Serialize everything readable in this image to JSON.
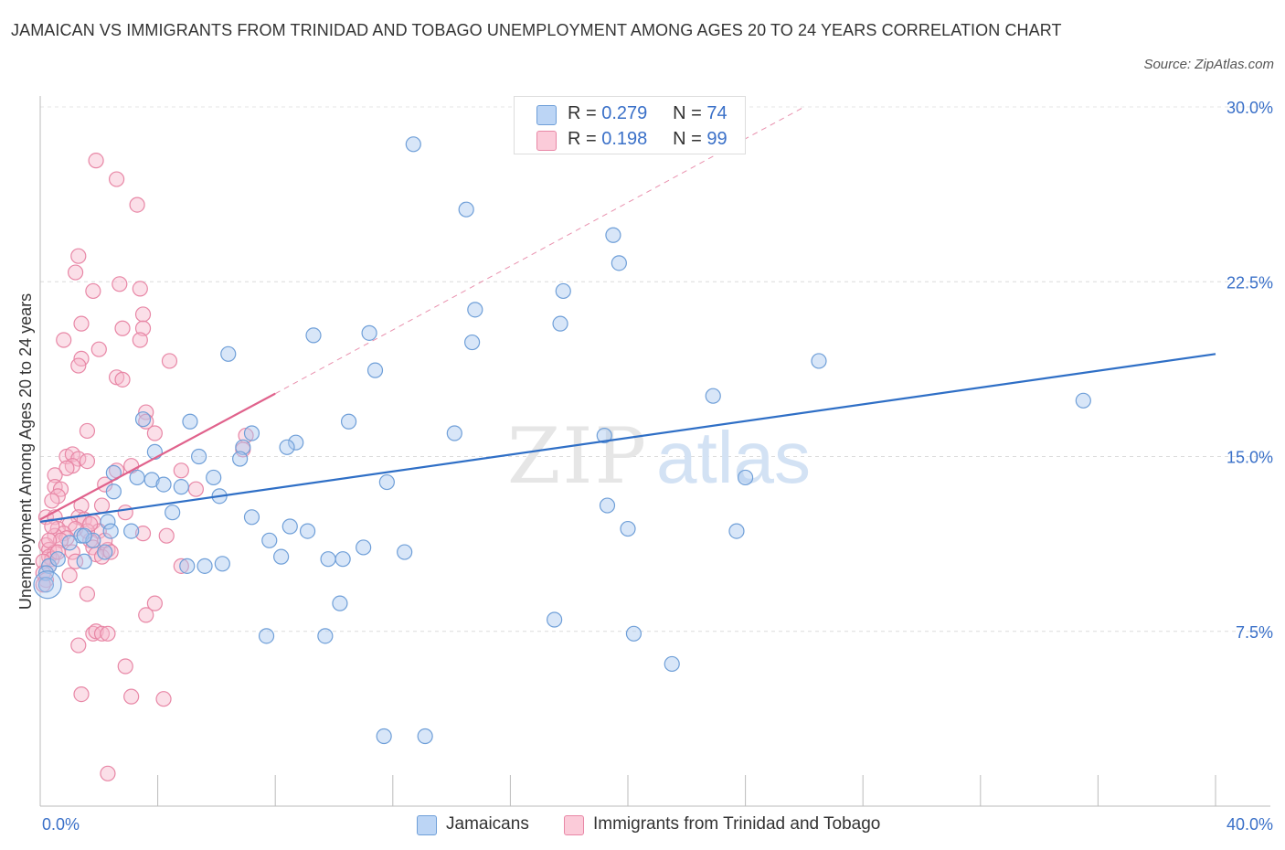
{
  "title": "JAMAICAN VS IMMIGRANTS FROM TRINIDAD AND TOBAGO UNEMPLOYMENT AMONG AGES 20 TO 24 YEARS CORRELATION CHART",
  "source": "Source: ZipAtlas.com",
  "watermark": {
    "zip": "ZIP",
    "atlas": "atlas"
  },
  "legend": {
    "r_label": "R =",
    "n_label": "N =",
    "series": [
      {
        "r": "0.279",
        "n": "74"
      },
      {
        "r": "0.198",
        "n": "99"
      }
    ]
  },
  "bottom_legend": [
    "Jamaicans",
    "Immigrants from Trinidad and Tobago"
  ],
  "colors": {
    "blue_fill": "#a8c8f0",
    "blue_stroke": "#6f9fd8",
    "blue_line": "#2f6fc6",
    "pink_fill": "#f7b9cc",
    "pink_stroke": "#e887a6",
    "pink_line": "#e0628c",
    "tick_label": "#3a70c8"
  },
  "chart_data": {
    "type": "scatter",
    "xlabel": "",
    "ylabel": "Unemployment Among Ages 20 to 24 years",
    "xlim": [
      0,
      40
    ],
    "ylim": [
      0,
      30
    ],
    "x_tick_labels": [
      "0.0%",
      "40.0%"
    ],
    "y_ticks": [
      7.5,
      15.0,
      22.5,
      30.0
    ],
    "y_tick_labels": [
      "7.5%",
      "15.0%",
      "22.5%",
      "30.0%"
    ],
    "grid": "horizontal dashed",
    "series": [
      {
        "name": "Jamaicans",
        "r": 0.279,
        "n": 74,
        "trend": {
          "x": [
            0,
            40
          ],
          "y": [
            12.2,
            19.4
          ],
          "style": "solid"
        },
        "points": [
          [
            12.7,
            28.4
          ],
          [
            14.5,
            25.6
          ],
          [
            19.5,
            24.5
          ],
          [
            19.7,
            23.3
          ],
          [
            17.8,
            22.1
          ],
          [
            14.8,
            21.3
          ],
          [
            17.7,
            20.7
          ],
          [
            9.3,
            20.2
          ],
          [
            11.2,
            20.3
          ],
          [
            14.7,
            19.9
          ],
          [
            6.4,
            19.4
          ],
          [
            26.5,
            19.1
          ],
          [
            11.4,
            18.7
          ],
          [
            22.9,
            17.6
          ],
          [
            35.5,
            17.4
          ],
          [
            3.5,
            16.6
          ],
          [
            5.1,
            16.5
          ],
          [
            10.5,
            16.5
          ],
          [
            7.2,
            16.0
          ],
          [
            14.1,
            16.0
          ],
          [
            19.2,
            15.9
          ],
          [
            8.7,
            15.6
          ],
          [
            8.4,
            15.4
          ],
          [
            6.9,
            15.4
          ],
          [
            3.9,
            15.2
          ],
          [
            5.4,
            15.0
          ],
          [
            6.8,
            14.9
          ],
          [
            2.5,
            14.3
          ],
          [
            3.3,
            14.1
          ],
          [
            5.9,
            14.1
          ],
          [
            24.0,
            14.1
          ],
          [
            3.8,
            14.0
          ],
          [
            4.2,
            13.8
          ],
          [
            4.8,
            13.7
          ],
          [
            11.8,
            13.9
          ],
          [
            2.5,
            13.5
          ],
          [
            6.1,
            13.3
          ],
          [
            19.3,
            12.9
          ],
          [
            4.5,
            12.6
          ],
          [
            7.2,
            12.4
          ],
          [
            2.3,
            12.2
          ],
          [
            8.5,
            12.0
          ],
          [
            1.4,
            11.6
          ],
          [
            1.8,
            11.4
          ],
          [
            2.4,
            11.8
          ],
          [
            3.1,
            11.8
          ],
          [
            9.1,
            11.8
          ],
          [
            20.0,
            11.9
          ],
          [
            23.7,
            11.8
          ],
          [
            7.8,
            11.4
          ],
          [
            1.0,
            11.3
          ],
          [
            2.2,
            10.9
          ],
          [
            11.0,
            11.1
          ],
          [
            12.4,
            10.9
          ],
          [
            8.2,
            10.7
          ],
          [
            9.8,
            10.6
          ],
          [
            10.3,
            10.6
          ],
          [
            1.5,
            10.5
          ],
          [
            5.6,
            10.3
          ],
          [
            6.2,
            10.4
          ],
          [
            0.3,
            10.3
          ],
          [
            5.0,
            10.3
          ],
          [
            0.2,
            10.0
          ],
          [
            0.2,
            9.5
          ],
          [
            10.2,
            8.7
          ],
          [
            17.5,
            8.0
          ],
          [
            7.7,
            7.3
          ],
          [
            9.7,
            7.3
          ],
          [
            20.2,
            7.4
          ],
          [
            21.5,
            6.1
          ],
          [
            11.7,
            3.0
          ],
          [
            13.1,
            3.0
          ],
          [
            1.5,
            11.6
          ],
          [
            0.6,
            10.6
          ]
        ]
      },
      {
        "name": "Immigrants from Trinidad and Tobago",
        "r": 0.198,
        "n": 99,
        "trend": {
          "x": [
            0,
            8.0
          ],
          "y": [
            12.3,
            17.7
          ],
          "style": "solid",
          "extended": {
            "x": [
              8.0,
              26.0
            ],
            "y": [
              17.7,
              30.0
            ],
            "style": "dashed"
          }
        },
        "points": [
          [
            1.9,
            27.7
          ],
          [
            2.6,
            26.9
          ],
          [
            3.3,
            25.8
          ],
          [
            1.3,
            23.6
          ],
          [
            1.2,
            22.9
          ],
          [
            2.7,
            22.4
          ],
          [
            1.8,
            22.1
          ],
          [
            3.4,
            22.2
          ],
          [
            3.5,
            21.1
          ],
          [
            1.4,
            20.7
          ],
          [
            2.8,
            20.5
          ],
          [
            3.5,
            20.5
          ],
          [
            0.8,
            20.0
          ],
          [
            3.4,
            20.0
          ],
          [
            2.0,
            19.6
          ],
          [
            1.4,
            19.2
          ],
          [
            1.3,
            18.9
          ],
          [
            4.4,
            19.1
          ],
          [
            2.6,
            18.4
          ],
          [
            2.8,
            18.3
          ],
          [
            3.6,
            16.9
          ],
          [
            3.6,
            16.5
          ],
          [
            1.6,
            16.1
          ],
          [
            3.9,
            16.0
          ],
          [
            7.0,
            15.9
          ],
          [
            6.9,
            15.3
          ],
          [
            0.9,
            15.0
          ],
          [
            1.1,
            15.1
          ],
          [
            1.3,
            14.9
          ],
          [
            1.6,
            14.8
          ],
          [
            1.1,
            14.6
          ],
          [
            0.9,
            14.5
          ],
          [
            3.1,
            14.6
          ],
          [
            2.6,
            14.4
          ],
          [
            4.8,
            14.4
          ],
          [
            0.5,
            14.2
          ],
          [
            2.2,
            13.8
          ],
          [
            0.5,
            13.7
          ],
          [
            0.7,
            13.6
          ],
          [
            5.3,
            13.6
          ],
          [
            0.6,
            13.3
          ],
          [
            0.4,
            13.1
          ],
          [
            1.4,
            12.9
          ],
          [
            2.1,
            12.9
          ],
          [
            2.9,
            12.6
          ],
          [
            0.2,
            12.4
          ],
          [
            0.5,
            12.4
          ],
          [
            1.3,
            12.4
          ],
          [
            1.5,
            12.3
          ],
          [
            1.8,
            12.2
          ],
          [
            1.0,
            12.1
          ],
          [
            0.6,
            11.9
          ],
          [
            1.2,
            11.9
          ],
          [
            0.8,
            11.7
          ],
          [
            2.0,
            11.8
          ],
          [
            3.5,
            11.7
          ],
          [
            4.3,
            11.6
          ],
          [
            0.5,
            11.6
          ],
          [
            0.9,
            11.5
          ],
          [
            0.7,
            11.4
          ],
          [
            1.7,
            11.4
          ],
          [
            0.2,
            11.2
          ],
          [
            0.3,
            11.0
          ],
          [
            0.5,
            10.9
          ],
          [
            1.1,
            10.9
          ],
          [
            1.8,
            11.1
          ],
          [
            2.3,
            11.0
          ],
          [
            0.3,
            10.7
          ],
          [
            1.9,
            10.8
          ],
          [
            2.1,
            10.7
          ],
          [
            0.4,
            10.6
          ],
          [
            0.1,
            10.5
          ],
          [
            0.3,
            10.3
          ],
          [
            4.8,
            10.3
          ],
          [
            0.1,
            10.0
          ],
          [
            1.0,
            9.9
          ],
          [
            0.2,
            9.7
          ],
          [
            0.1,
            9.5
          ],
          [
            1.6,
            9.1
          ],
          [
            3.9,
            8.7
          ],
          [
            3.6,
            8.2
          ],
          [
            1.8,
            7.4
          ],
          [
            1.9,
            7.5
          ],
          [
            2.1,
            7.4
          ],
          [
            2.3,
            7.4
          ],
          [
            1.3,
            6.9
          ],
          [
            2.9,
            6.0
          ],
          [
            1.4,
            4.8
          ],
          [
            3.1,
            4.7
          ],
          [
            4.2,
            4.6
          ],
          [
            2.3,
            1.4
          ],
          [
            0.4,
            12.0
          ],
          [
            1.6,
            11.8
          ],
          [
            0.3,
            11.4
          ],
          [
            2.2,
            11.4
          ],
          [
            0.6,
            10.9
          ],
          [
            1.2,
            10.5
          ],
          [
            2.4,
            10.9
          ],
          [
            1.7,
            12.1
          ]
        ]
      }
    ]
  }
}
